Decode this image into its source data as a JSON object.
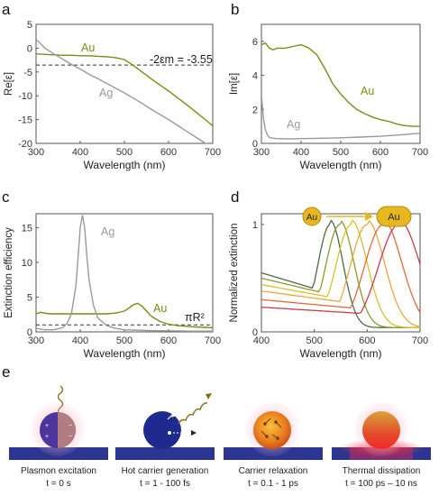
{
  "panels": {
    "a": "a",
    "b": "b",
    "c": "c",
    "d": "d",
    "e": "e"
  },
  "colors": {
    "au": "#7f8a14",
    "ag": "#9a9a9a",
    "dashed": "#333333",
    "substrate": "#2c3590",
    "sphere": "#1f2a8e",
    "particle_gold": "#e6b820"
  },
  "chart_data": [
    {
      "type": "line",
      "panel": "a",
      "xlabel": "Wavelength (nm)",
      "ylabel": "Re[ε]",
      "xlim": [
        300,
        700
      ],
      "ylim": [
        -20,
        5
      ],
      "xticks": [
        "300",
        "400",
        "500",
        "600",
        "700"
      ],
      "yticks": [
        "5",
        "0",
        "-5",
        "-10",
        "-15",
        "-20"
      ],
      "series": [
        {
          "name": "Au",
          "color": "#7f8a14",
          "x": [
            300,
            320,
            340,
            360,
            380,
            400,
            420,
            440,
            460,
            480,
            500,
            520,
            540,
            560,
            580,
            600,
            620,
            640,
            660,
            680,
            700
          ],
          "y": [
            -1.2,
            -1.3,
            -1.4,
            -1.5,
            -1.5,
            -1.6,
            -1.6,
            -1.7,
            -1.8,
            -2.0,
            -2.4,
            -3.6,
            -5.0,
            -6.4,
            -7.7,
            -9.0,
            -10.4,
            -11.8,
            -13.3,
            -14.8,
            -16.3
          ]
        },
        {
          "name": "Ag",
          "color": "#9a9a9a",
          "x": [
            300,
            310,
            320,
            340,
            360,
            380,
            400,
            420,
            440,
            460,
            480,
            500,
            520,
            540,
            560,
            580,
            600,
            620,
            640,
            660,
            680,
            700
          ],
          "y": [
            1.8,
            1.0,
            0.0,
            -1.2,
            -2.3,
            -3.4,
            -4.4,
            -5.5,
            -6.4,
            -7.4,
            -8.4,
            -9.4,
            -10.5,
            -11.6,
            -12.8,
            -13.9,
            -15.0,
            -16.2,
            -17.4,
            -18.6,
            -19.8,
            -21.0
          ]
        }
      ],
      "hline": {
        "y": -3.55,
        "label": "-2εm = -3.55"
      },
      "series_labels": {
        "Au": "Au",
        "Ag": "Ag"
      }
    },
    {
      "type": "line",
      "panel": "b",
      "xlabel": "Wavelength (nm)",
      "ylabel": "Im[ε]",
      "xlim": [
        300,
        700
      ],
      "ylim": [
        0,
        7
      ],
      "xticks": [
        "300",
        "400",
        "500",
        "600",
        "700"
      ],
      "yticks": [
        "0",
        "2",
        "4",
        "6"
      ],
      "series": [
        {
          "name": "Au",
          "color": "#7f8a14",
          "x": [
            300,
            310,
            320,
            330,
            340,
            360,
            380,
            400,
            420,
            440,
            460,
            480,
            500,
            520,
            540,
            560,
            580,
            600,
            620,
            640,
            660,
            680,
            700
          ],
          "y": [
            5.8,
            5.9,
            5.6,
            5.5,
            5.6,
            5.6,
            5.7,
            5.8,
            5.6,
            5.2,
            4.4,
            3.5,
            2.9,
            2.4,
            2.0,
            1.75,
            1.55,
            1.4,
            1.3,
            1.15,
            1.05,
            1.0,
            1.0
          ]
        },
        {
          "name": "Ag",
          "color": "#9a9a9a",
          "x": [
            300,
            305,
            310,
            315,
            320,
            330,
            340,
            360,
            380,
            400,
            450,
            500,
            550,
            600,
            650,
            700
          ],
          "y": [
            2.8,
            1.5,
            0.8,
            0.5,
            0.35,
            0.3,
            0.28,
            0.27,
            0.27,
            0.28,
            0.3,
            0.33,
            0.37,
            0.42,
            0.5,
            0.6
          ]
        }
      ],
      "series_labels": {
        "Au": "Au",
        "Ag": "Ag"
      }
    },
    {
      "type": "line",
      "panel": "c",
      "xlabel": "Wavelength (nm)",
      "ylabel": "Extinction efficiency",
      "xlim": [
        300,
        700
      ],
      "ylim": [
        0,
        17
      ],
      "xticks": [
        "300",
        "400",
        "500",
        "600",
        "700"
      ],
      "yticks": [
        "0",
        "5",
        "10",
        "15"
      ],
      "series": [
        {
          "name": "Au",
          "color": "#7f8a14",
          "x": [
            300,
            310,
            320,
            330,
            340,
            360,
            380,
            400,
            420,
            440,
            460,
            480,
            500,
            510,
            520,
            530,
            540,
            550,
            560,
            580,
            600,
            620,
            640,
            660,
            680,
            700
          ],
          "y": [
            2.6,
            2.8,
            2.7,
            2.6,
            2.6,
            2.6,
            2.6,
            2.6,
            2.6,
            2.6,
            2.6,
            2.7,
            3.0,
            3.4,
            3.9,
            4.1,
            3.7,
            3.0,
            2.3,
            1.5,
            1.1,
            0.9,
            0.8,
            0.7,
            0.65,
            0.6
          ]
        },
        {
          "name": "Ag",
          "color": "#9a9a9a",
          "x": [
            300,
            320,
            340,
            360,
            370,
            380,
            390,
            395,
            400,
            405,
            410,
            415,
            420,
            430,
            440,
            460,
            480,
            500,
            550,
            600,
            650,
            700
          ],
          "y": [
            0.5,
            0.3,
            0.3,
            0.6,
            1.2,
            2.6,
            6.5,
            10.5,
            15.0,
            16.8,
            15.0,
            11.0,
            7.5,
            3.8,
            2.0,
            0.9,
            0.5,
            0.3,
            0.2,
            0.15,
            0.1,
            0.1
          ]
        }
      ],
      "hline": {
        "y": 1.0,
        "label": "πR²"
      },
      "series_labels": {
        "Au": "Au",
        "Ag": "Ag"
      }
    },
    {
      "type": "line",
      "panel": "d",
      "xlabel": "Wavelength (nm)",
      "ylabel": "Normalized extinction",
      "xlim": [
        400,
        700
      ],
      "ylim": [
        0,
        1.1
      ],
      "xticks": [
        "400",
        "500",
        "600",
        "700"
      ],
      "yticks": [
        "0",
        "1"
      ],
      "particle_labels": {
        "small": "Au",
        "large": "Au"
      },
      "series": [
        {
          "color": "#4a6b48",
          "peak": 530,
          "width": 34,
          "base": 0.55
        },
        {
          "color": "#8c9a2e",
          "peak": 548,
          "width": 38,
          "base": 0.5
        },
        {
          "color": "#d8c22a",
          "peak": 570,
          "width": 42,
          "base": 0.44
        },
        {
          "color": "#e9a73c",
          "peak": 600,
          "width": 46,
          "base": 0.38
        },
        {
          "color": "#e06a3a",
          "peak": 630,
          "width": 50,
          "base": 0.3
        },
        {
          "color": "#c93a4c",
          "peak": 660,
          "width": 55,
          "base": 0.23
        }
      ]
    }
  ],
  "panel_e": {
    "captions": [
      {
        "title": "Plasmon excitation",
        "time": "t = 0 s"
      },
      {
        "title": "Hot carrier generation",
        "time": "t = 1 - 100 fs"
      },
      {
        "title": "Carrier relaxation",
        "time": "t = 0.1 - 1 ps"
      },
      {
        "title": "Thermal dissipation",
        "time": "t = 100 ps – 10 ns"
      }
    ]
  }
}
